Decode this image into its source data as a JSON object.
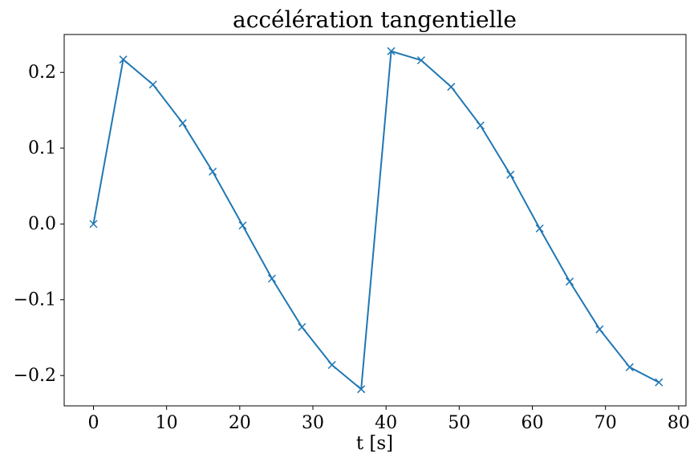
{
  "chart_data": {
    "type": "line",
    "title": "accélération tangentielle",
    "xlabel": "t [s]",
    "ylabel": "",
    "xlim": [
      -4,
      81
    ],
    "ylim": [
      -0.24,
      0.25
    ],
    "xticks": [
      0,
      10,
      20,
      30,
      40,
      50,
      60,
      70,
      80
    ],
    "xtick_labels": [
      "0",
      "10",
      "20",
      "30",
      "40",
      "50",
      "60",
      "70",
      "80"
    ],
    "yticks": [
      -0.2,
      -0.1,
      0.0,
      0.1,
      0.2
    ],
    "ytick_labels": [
      "−0.2",
      "−0.1",
      "0.0",
      "0.1",
      "0.2"
    ],
    "grid": false,
    "series": [
      {
        "color": "#1f77b4",
        "marker": "x",
        "x": [
          0,
          4.07,
          8.14,
          12.2,
          16.3,
          20.4,
          24.4,
          28.5,
          32.6,
          36.6,
          40.7,
          44.8,
          48.9,
          52.9,
          57.0,
          61.0,
          65.1,
          69.2,
          73.3,
          77.3
        ],
        "y": [
          0.0,
          0.217,
          0.184,
          0.133,
          0.069,
          -0.002,
          -0.072,
          -0.136,
          -0.186,
          -0.218,
          0.228,
          0.216,
          0.181,
          0.13,
          0.065,
          -0.006,
          -0.076,
          -0.139,
          -0.189,
          -0.209
        ]
      }
    ]
  }
}
